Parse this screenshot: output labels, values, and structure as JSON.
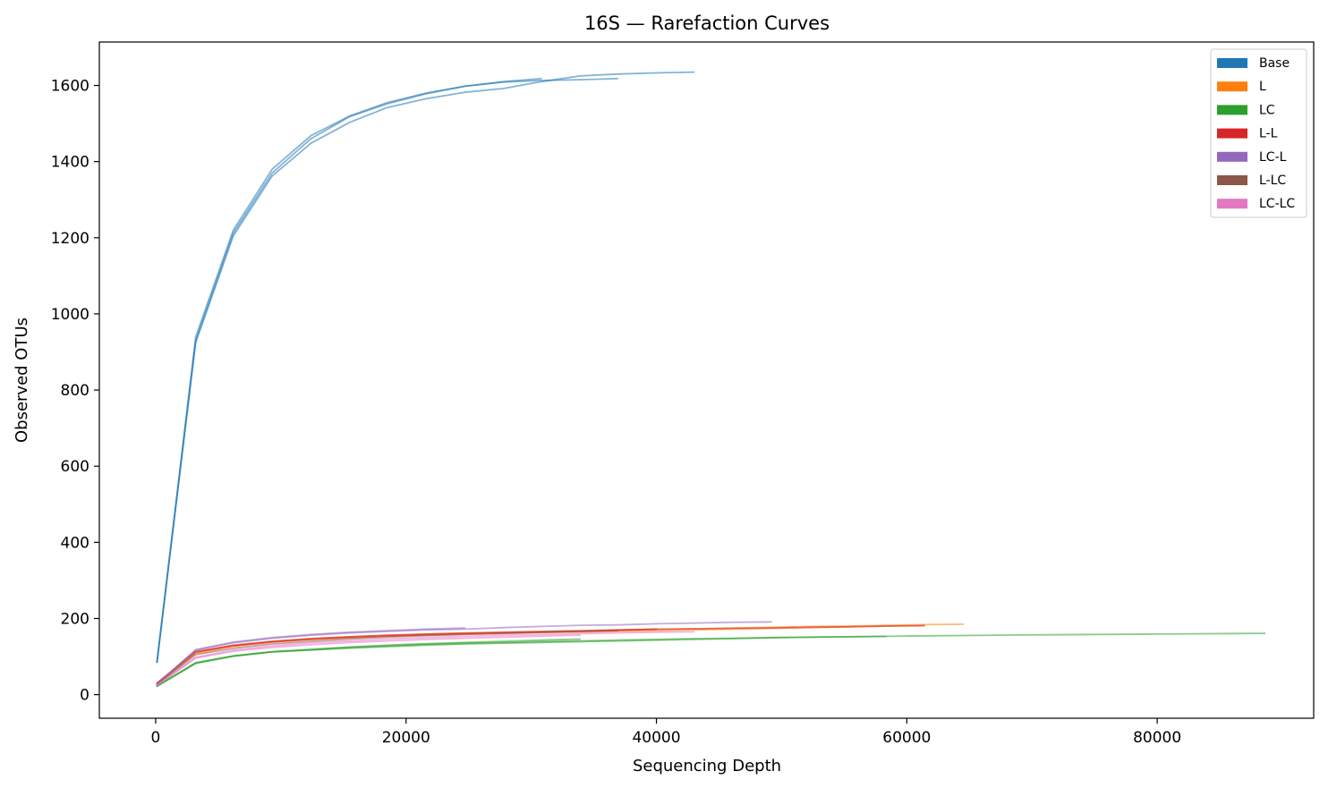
{
  "chart_data": {
    "type": "line",
    "title": "16S — Rarefaction Curves",
    "xlabel": "Sequencing Depth",
    "ylabel": "Observed OTUs",
    "xlim": [
      -4500,
      92500
    ],
    "ylim": [
      -62,
      1714
    ],
    "xticks": [
      0,
      20000,
      40000,
      60000,
      80000
    ],
    "yticks": [
      0,
      200,
      400,
      600,
      800,
      1000,
      1200,
      1400,
      1600
    ],
    "grid": false,
    "legend_position": "top-right",
    "legend": [
      {
        "name": "Base",
        "color": "#1f77b4"
      },
      {
        "name": "L",
        "color": "#ff7f0e"
      },
      {
        "name": "LC",
        "color": "#2ca02c"
      },
      {
        "name": "L-L",
        "color": "#d62728"
      },
      {
        "name": "LC-L",
        "color": "#9467bd"
      },
      {
        "name": "L-LC",
        "color": "#8c564b"
      },
      {
        "name": "LC-LC",
        "color": "#e377c2"
      }
    ],
    "series": [
      {
        "group": "Base",
        "color": "#1f77b4",
        "x": [
          100,
          3200,
          6200,
          9300,
          12400,
          15500,
          18500,
          21600,
          24700,
          27800,
          30800
        ],
        "y": [
          85,
          940,
          1220,
          1380,
          1468,
          1520,
          1555,
          1580,
          1598,
          1610,
          1618
        ]
      },
      {
        "group": "Base",
        "color": "#1f77b4",
        "x": [
          100,
          3200,
          6200,
          9300,
          12400,
          15500,
          18500,
          21600,
          24700,
          27800,
          30800,
          33900,
          36900
        ],
        "y": [
          85,
          930,
          1212,
          1370,
          1460,
          1518,
          1552,
          1578,
          1598,
          1609,
          1613,
          1615,
          1618
        ]
      },
      {
        "group": "Base",
        "color": "#1f77b4",
        "x": [
          100,
          3200,
          6200,
          9300,
          12400,
          15500,
          18500,
          21600,
          24700,
          27800,
          30800,
          33900,
          36900,
          40000,
          43000
        ],
        "y": [
          85,
          925,
          1205,
          1362,
          1448,
          1503,
          1542,
          1565,
          1582,
          1592,
          1610,
          1625,
          1630,
          1633,
          1635
        ]
      },
      {
        "group": "L",
        "color": "#ff7f0e",
        "x": [
          100,
          3200,
          6200,
          9300,
          12400,
          15500,
          18500,
          21600,
          24700,
          27800,
          30800,
          33900,
          36900,
          40000,
          43000,
          46100,
          49200,
          52200,
          55300,
          58300,
          61400
        ],
        "y": [
          27,
          108,
          127,
          138,
          145,
          150,
          154,
          157,
          159,
          161,
          163,
          164,
          166,
          168,
          170,
          172,
          174,
          176,
          178,
          180,
          182
        ]
      },
      {
        "group": "L",
        "color": "#ff7f0e",
        "x": [
          100,
          3200,
          6200,
          9300,
          12400,
          15500,
          18500,
          21600,
          24700,
          27800,
          30800,
          33900,
          36900,
          40000,
          43000,
          46100,
          49200,
          52200,
          55300,
          58300,
          61400,
          64500
        ],
        "y": [
          27,
          110,
          129,
          140,
          147,
          152,
          156,
          159,
          161,
          163,
          165,
          167,
          169,
          171,
          173,
          175,
          177,
          179,
          180,
          182,
          184,
          185
        ]
      },
      {
        "group": "LC",
        "color": "#2ca02c",
        "x": [
          100,
          3200,
          6200,
          9300,
          12400,
          15500,
          18500,
          21600,
          24700,
          27800,
          30800,
          33900
        ],
        "y": [
          22,
          84,
          102,
          113,
          119,
          125,
          130,
          134,
          137,
          140,
          143,
          146
        ]
      },
      {
        "group": "LC",
        "color": "#2ca02c",
        "x": [
          100,
          3200,
          6200,
          9300,
          12400,
          15500,
          18500,
          21600,
          24700,
          27800,
          30800,
          33900,
          36900,
          40000,
          43000,
          46100,
          49200,
          52200,
          55300,
          58300
        ],
        "y": [
          22,
          83,
          101,
          112,
          118,
          124,
          128,
          132,
          135,
          137,
          139,
          141,
          143,
          145,
          147,
          148,
          150,
          151,
          152,
          153
        ]
      },
      {
        "group": "LC",
        "color": "#2ca02c",
        "x": [
          100,
          3200,
          6200,
          9300,
          12400,
          15500,
          18500,
          21600,
          24700,
          27800,
          30800,
          33900,
          36900,
          40000,
          43000,
          50000,
          60000,
          70000,
          80000,
          88600
        ],
        "y": [
          22,
          82,
          101,
          112,
          117,
          122,
          126,
          130,
          133,
          135,
          137,
          139,
          141,
          143,
          145,
          150,
          154,
          157,
          159,
          161
        ]
      },
      {
        "group": "L-L",
        "color": "#d62728",
        "x": [
          100,
          3200,
          6200,
          9300,
          12400,
          15500,
          18500,
          21600,
          24700,
          27800,
          30800,
          33900,
          36900,
          40000
        ],
        "y": [
          30,
          112,
          128,
          138,
          145,
          150,
          154,
          157,
          160,
          162,
          164,
          166,
          169,
          172
        ]
      },
      {
        "group": "L-L",
        "color": "#d62728",
        "x": [
          100,
          3200,
          6200,
          9300,
          12400,
          15500,
          18500,
          21600,
          24700,
          27800,
          30800,
          33900,
          36900,
          40000,
          43000,
          46100,
          49200,
          52200,
          55300,
          58300,
          61400
        ],
        "y": [
          30,
          113,
          130,
          140,
          147,
          152,
          156,
          159,
          162,
          164,
          166,
          168,
          170,
          172,
          173,
          174,
          175,
          177,
          178,
          180,
          181
        ]
      },
      {
        "group": "LC-L",
        "color": "#9467bd",
        "x": [
          100,
          3200,
          6200,
          9300,
          12400,
          15500,
          18500,
          21600,
          24700
        ],
        "y": [
          28,
          118,
          138,
          150,
          158,
          164,
          168,
          172,
          175
        ]
      },
      {
        "group": "LC-L",
        "color": "#9467bd",
        "x": [
          100,
          3200,
          6200,
          9300,
          12400,
          15500,
          18500,
          21600,
          24700,
          27800,
          30800,
          33900,
          36900,
          40000,
          43000,
          46100,
          49200
        ],
        "y": [
          28,
          117,
          136,
          148,
          156,
          162,
          166,
          170,
          172,
          176,
          179,
          182,
          183,
          186,
          188,
          190,
          191
        ]
      },
      {
        "group": "L-LC",
        "color": "#8c564b",
        "x": [
          100,
          3200,
          6200,
          9300,
          12400,
          15500,
          18500,
          21600,
          24700,
          27800,
          30800,
          33900,
          36900
        ],
        "y": [
          26,
          105,
          122,
          133,
          140,
          146,
          151,
          155,
          158,
          161,
          164,
          166,
          168
        ]
      },
      {
        "group": "LC-LC",
        "color": "#e377c2",
        "x": [
          100,
          3200,
          6200,
          9300,
          12400,
          15500,
          18500,
          21600,
          24700,
          27800,
          30800,
          33900
        ],
        "y": [
          24,
          96,
          114,
          124,
          131,
          137,
          141,
          145,
          148,
          151,
          154,
          156
        ]
      },
      {
        "group": "LC-LC",
        "color": "#e377c2",
        "x": [
          100,
          3200,
          6200,
          9300,
          12400,
          15500,
          18500,
          21600,
          24700,
          27800,
          30800,
          33900,
          36900,
          40000,
          43000
        ],
        "y": [
          24,
          98,
          117,
          128,
          136,
          141,
          146,
          150,
          153,
          156,
          158,
          160,
          162,
          164,
          165
        ]
      }
    ]
  }
}
